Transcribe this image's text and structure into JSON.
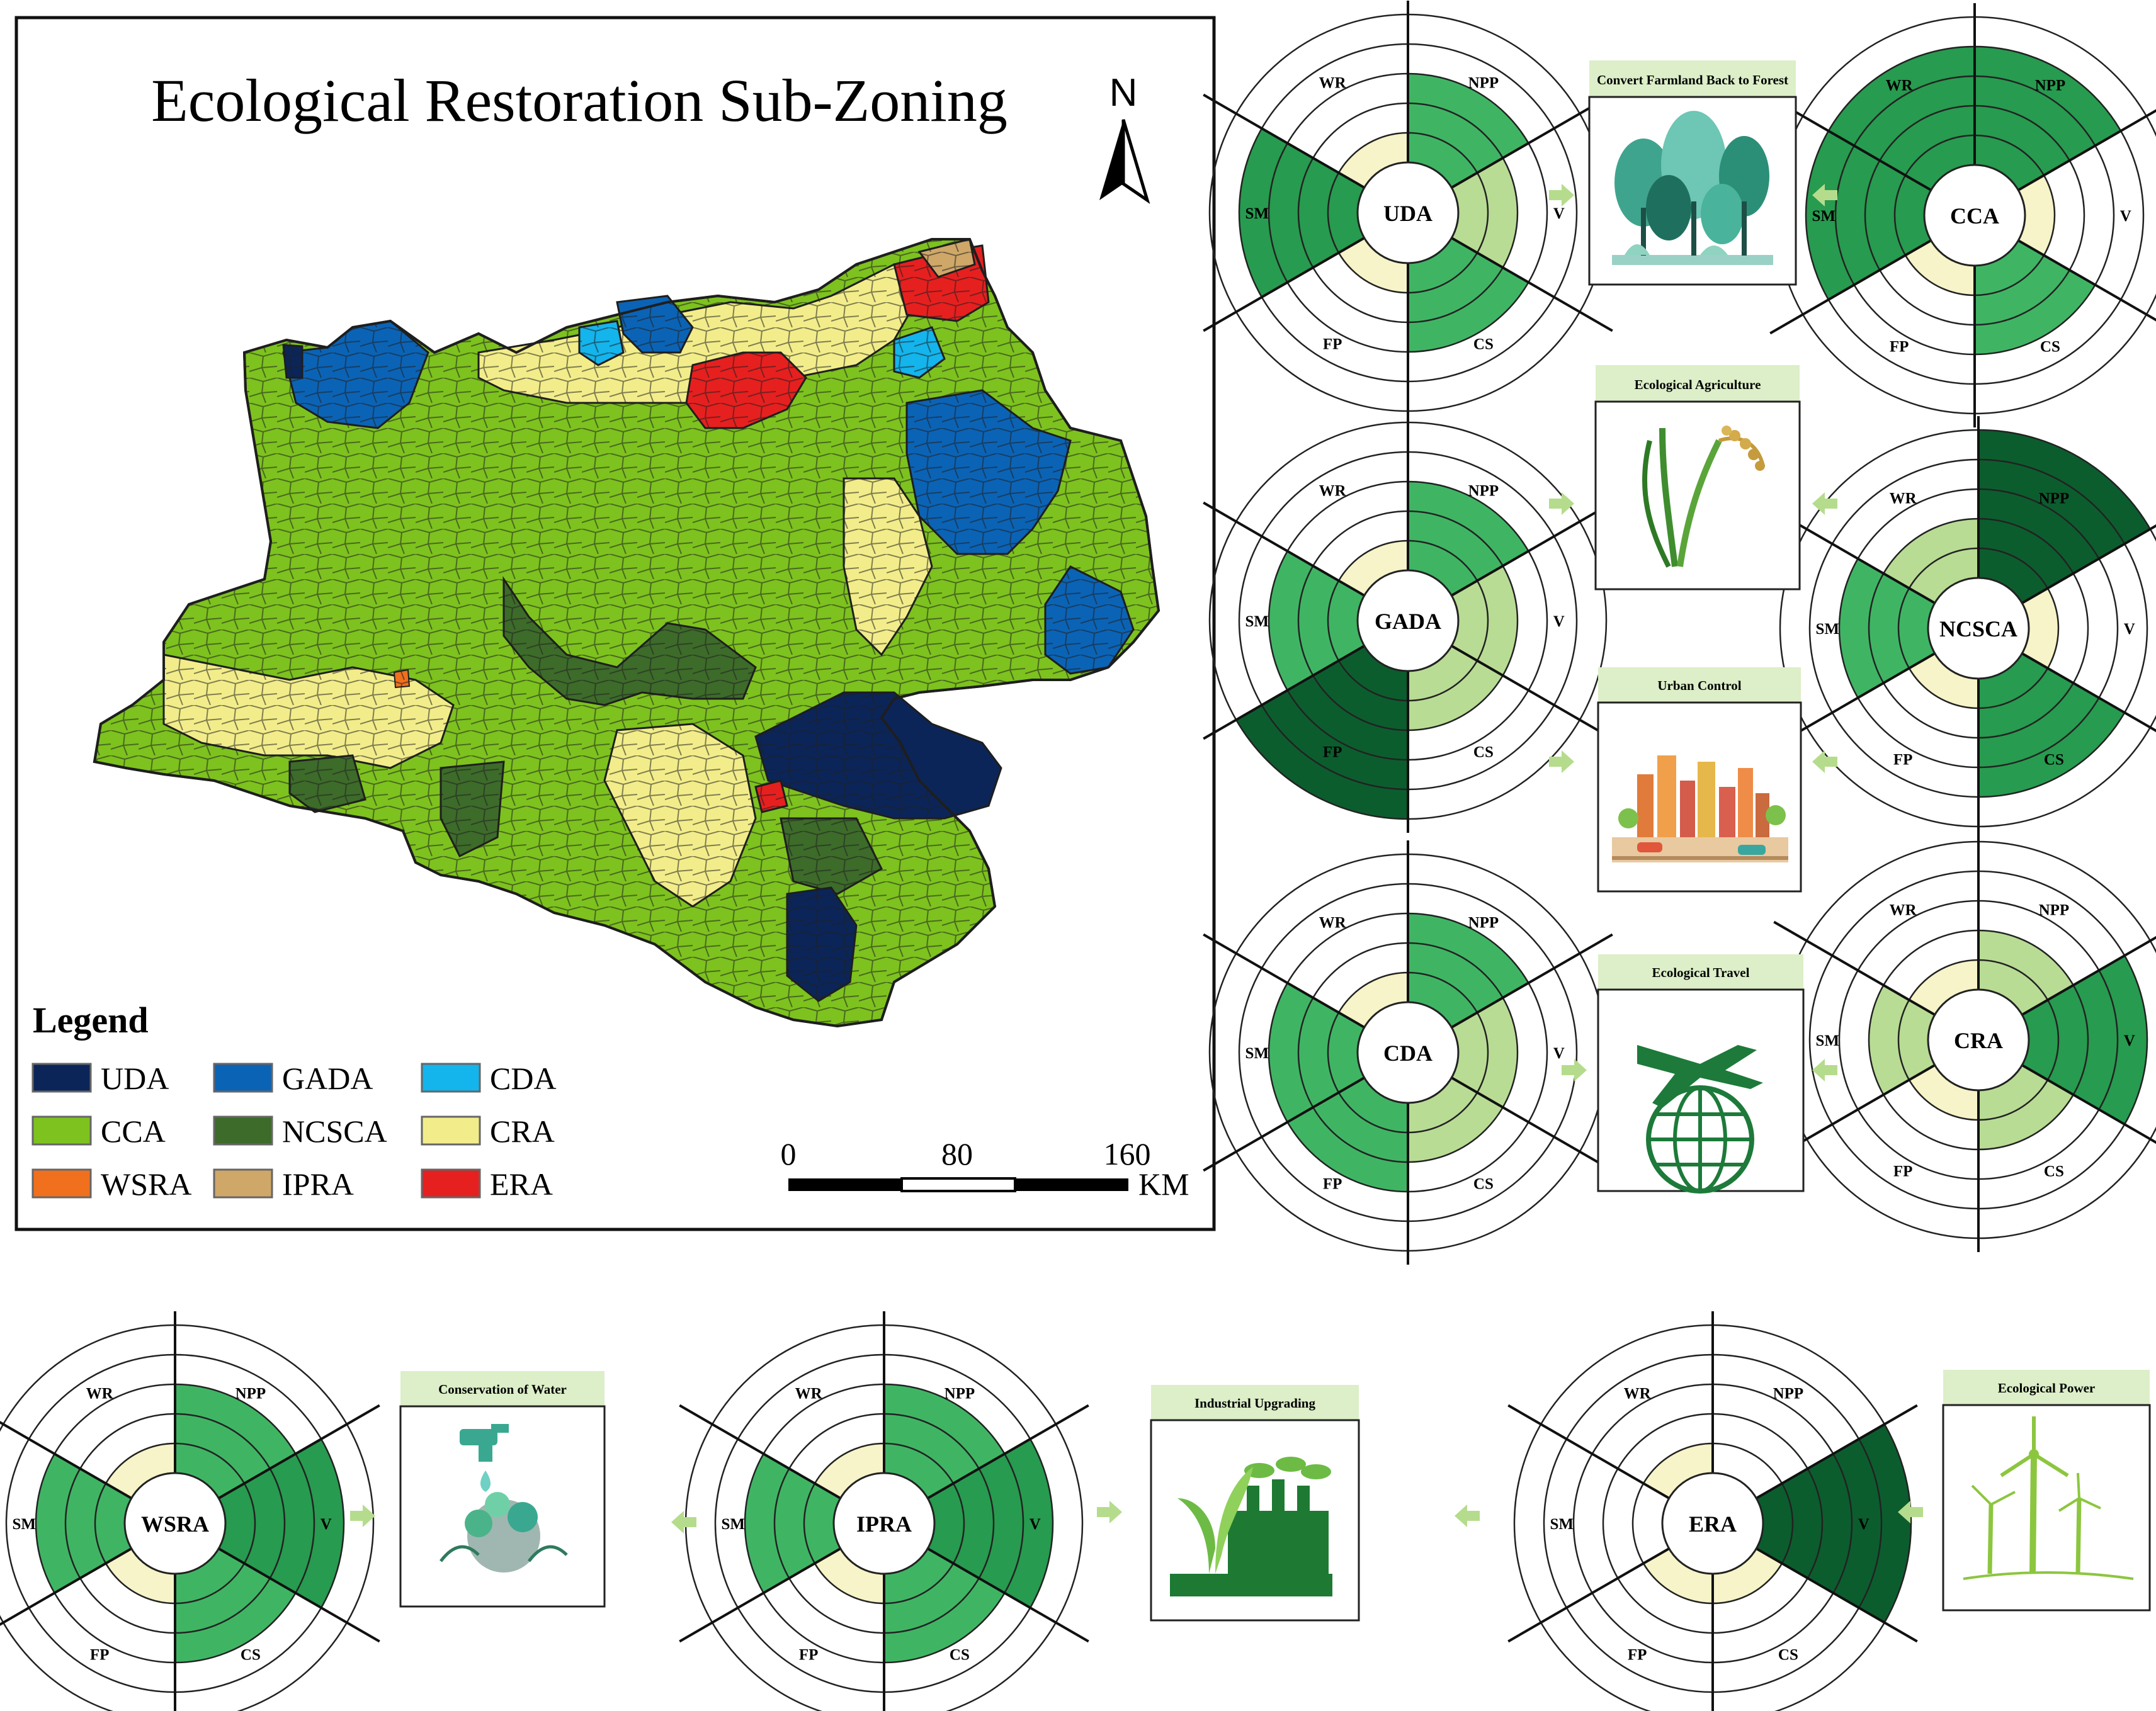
{
  "map": {
    "title": "Ecological Restoration Sub-Zoning",
    "north_label": "N",
    "legend_title": "Legend",
    "legend": [
      {
        "code": "UDA",
        "color": "#0b2559"
      },
      {
        "code": "GADA",
        "color": "#0b63b5"
      },
      {
        "code": "CDA",
        "color": "#14b4ec"
      },
      {
        "code": "CCA",
        "color": "#7dc21e"
      },
      {
        "code": "NCSCA",
        "color": "#3d6b2a"
      },
      {
        "code": "CRA",
        "color": "#f2ed8a"
      },
      {
        "code": "WSRA",
        "color": "#f0701e"
      },
      {
        "code": "IPRA",
        "color": "#cfa768"
      },
      {
        "code": "ERA",
        "color": "#e6201f"
      }
    ],
    "scale": {
      "ticks": [
        "0",
        "80",
        "160"
      ],
      "unit": "KM"
    }
  },
  "level_colors": {
    "1": "#f6f4c8",
    "2": "#b8dc94",
    "3": "#3fb564",
    "4": "#279b4f",
    "5": "#0c5d2e"
  },
  "radial_labels": [
    "NPP",
    "V",
    "CS",
    "FP",
    "SM",
    "WR"
  ],
  "radials": [
    {
      "code": "UDA",
      "levels": [
        3,
        2,
        3,
        1,
        4,
        1
      ]
    },
    {
      "code": "CCA",
      "levels": [
        4,
        1,
        3,
        1,
        4,
        4
      ]
    },
    {
      "code": "GADA",
      "levels": [
        3,
        2,
        2,
        5,
        3,
        1
      ]
    },
    {
      "code": "NCSCA",
      "levels": [
        5,
        1,
        4,
        1,
        3,
        2
      ]
    },
    {
      "code": "CDA",
      "levels": [
        3,
        2,
        2,
        3,
        3,
        1
      ]
    },
    {
      "code": "CRA",
      "levels": [
        2,
        4,
        2,
        1,
        2,
        1
      ]
    },
    {
      "code": "WSRA",
      "levels": [
        3,
        4,
        3,
        1,
        3,
        1
      ]
    },
    {
      "code": "IPRA",
      "levels": [
        3,
        4,
        3,
        1,
        3,
        1
      ]
    },
    {
      "code": "ERA",
      "levels": [
        0,
        5,
        1,
        1,
        0,
        1
      ]
    }
  ],
  "measures": [
    {
      "id": "forest",
      "title": "Convert Farmland Back to Forest",
      "icon": "forest-icon"
    },
    {
      "id": "agri",
      "title": "Ecological Agriculture",
      "icon": "rice-icon"
    },
    {
      "id": "urban",
      "title": "Urban Control",
      "icon": "city-icon"
    },
    {
      "id": "travel",
      "title": "Ecological Travel",
      "icon": "plane-globe-icon"
    },
    {
      "id": "water",
      "title": "Conservation of Water",
      "icon": "water-tap-icon"
    },
    {
      "id": "industry",
      "title": "Industrial Upgrading",
      "icon": "factory-leaf-icon"
    },
    {
      "id": "power",
      "title": "Ecological Power",
      "icon": "wind-turbine-icon"
    }
  ]
}
